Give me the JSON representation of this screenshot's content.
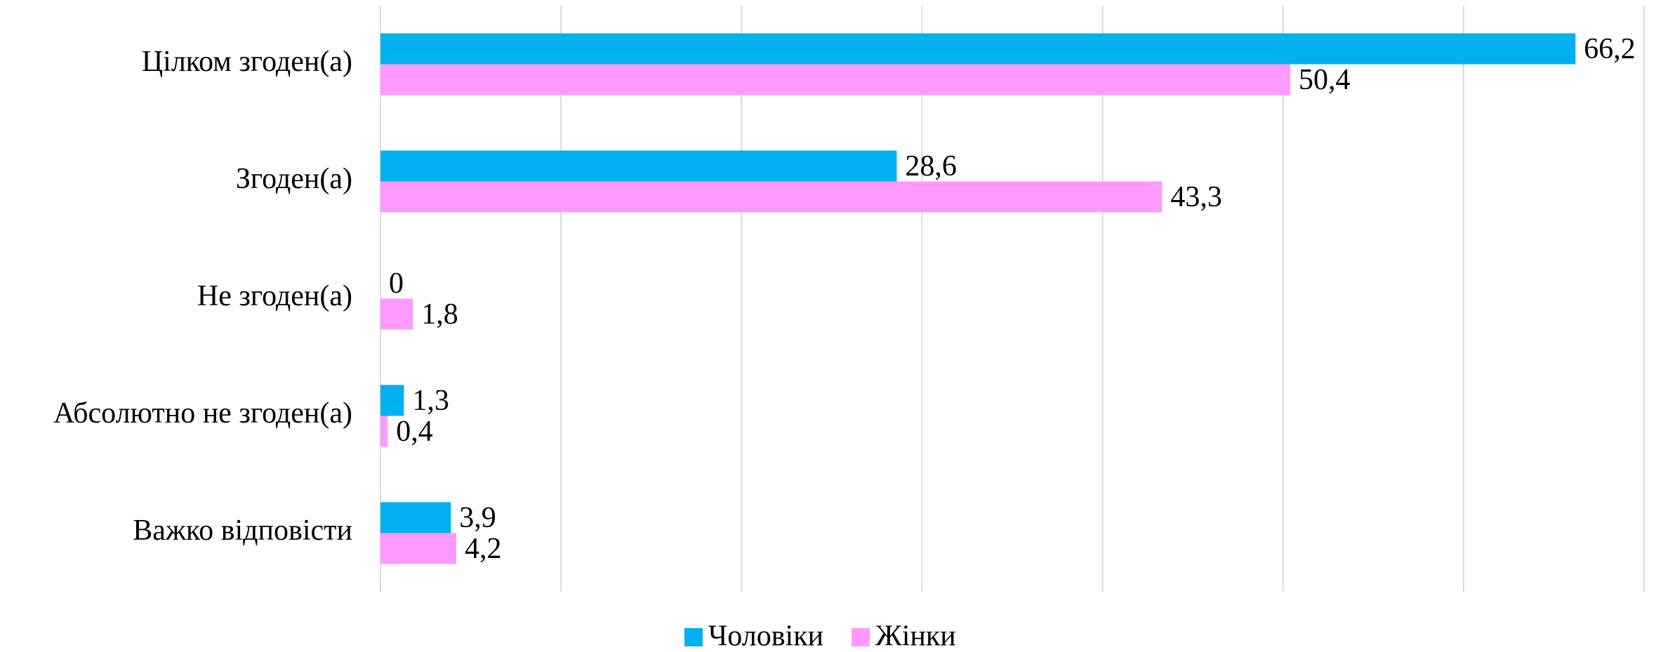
{
  "chart_data": {
    "type": "hbar",
    "categories": [
      "Цілком згоден(а)",
      "Згоден(а)",
      "Не згоден(а)",
      "Абсолютно не згоден(а)",
      "Важко відповісти"
    ],
    "series": [
      {
        "name": "Чоловіки",
        "color": "#00b0f0",
        "values": [
          66.2,
          28.6,
          0,
          1.3,
          3.9
        ],
        "value_labels": [
          "66,2",
          "28,6",
          "0",
          "1,3",
          "3,9"
        ]
      },
      {
        "name": "Жінки",
        "color": "#ff99ff",
        "values": [
          50.4,
          43.3,
          1.8,
          0.4,
          4.2
        ],
        "value_labels": [
          "50,4",
          "43,3",
          "1,8",
          "0,4",
          "4,2"
        ]
      }
    ],
    "xlim": [
      0,
      70
    ],
    "xticks": [
      0,
      10,
      20,
      30,
      40,
      50,
      60,
      70
    ],
    "grid": true,
    "legend": "bottom"
  }
}
